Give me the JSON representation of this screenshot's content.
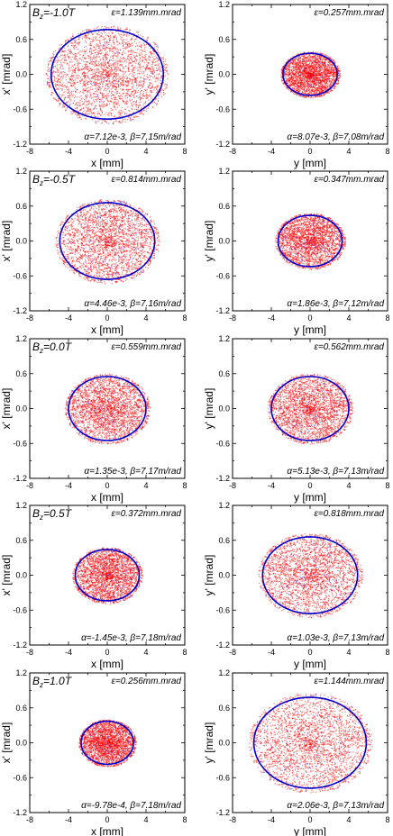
{
  "chart_data": [
    {
      "type": "scatter",
      "xlabel": "x [mm]",
      "ylabel": "x' [mrad]",
      "xlim": [
        -8,
        8
      ],
      "ylim": [
        -1.2,
        1.2
      ],
      "xticks": [
        "-8",
        "-4",
        "0",
        "4",
        "8"
      ],
      "yticks": [
        "-1.2",
        "-0.6",
        "0.0",
        "0.6",
        "1.2"
      ],
      "field_label": "B",
      "field_sub": "z",
      "field_value": "=-1.0T",
      "emittance": "ε=1.139mm.mrad",
      "twiss": "α=7.12e-3, β=7.15m/rad",
      "ellipse": {
        "semi_x": 5.8,
        "semi_y": 0.77
      },
      "series": [
        {
          "color": "#ff0000"
        }
      ],
      "fit_color": "#0000cc"
    },
    {
      "type": "scatter",
      "xlabel": "y [mm]",
      "ylabel": "y' [mrad]",
      "xlim": [
        -8,
        8
      ],
      "ylim": [
        -1.2,
        1.2
      ],
      "xticks": [
        "-8",
        "-4",
        "0",
        "4",
        "8"
      ],
      "yticks": [
        "-1.2",
        "-0.6",
        "0.0",
        "0.6",
        "1.2"
      ],
      "emittance": "ε=0.257mm.mrad",
      "twiss": "α=8.07e-3, β=7.08m/rad",
      "ellipse": {
        "semi_x": 2.8,
        "semi_y": 0.36
      },
      "series": [
        {
          "color": "#ff0000"
        }
      ],
      "fit_color": "#0000cc"
    },
    {
      "type": "scatter",
      "xlabel": "x [mm]",
      "ylabel": "x' [mrad]",
      "xlim": [
        -8,
        8
      ],
      "ylim": [
        -1.2,
        1.2
      ],
      "xticks": [
        "-8",
        "-4",
        "0",
        "4",
        "8"
      ],
      "yticks": [
        "-1.2",
        "-0.6",
        "0.0",
        "0.6",
        "1.2"
      ],
      "field_label": "B",
      "field_sub": "z",
      "field_value": "=-0.5T",
      "emittance": "ε=0.814mm.mrad",
      "twiss": "α=4.46e-3, β=7.16m/rad",
      "ellipse": {
        "semi_x": 4.9,
        "semi_y": 0.66
      },
      "series": [
        {
          "color": "#ff0000"
        }
      ],
      "fit_color": "#0000cc"
    },
    {
      "type": "scatter",
      "xlabel": "y [mm]",
      "ylabel": "y' [mrad]",
      "xlim": [
        -8,
        8
      ],
      "ylim": [
        -1.2,
        1.2
      ],
      "xticks": [
        "-8",
        "-4",
        "0",
        "4",
        "8"
      ],
      "yticks": [
        "-1.2",
        "-0.6",
        "0.0",
        "0.6",
        "1.2"
      ],
      "emittance": "ε=0.347mm.mrad",
      "twiss": "α=1.86e-3, β=7.12m/rad",
      "ellipse": {
        "semi_x": 3.3,
        "semi_y": 0.44
      },
      "series": [
        {
          "color": "#ff0000"
        }
      ],
      "fit_color": "#0000cc"
    },
    {
      "type": "scatter",
      "xlabel": "x [mm]",
      "ylabel": "x' [mrad]",
      "xlim": [
        -8,
        8
      ],
      "ylim": [
        -1.2,
        1.2
      ],
      "xticks": [
        "-8",
        "-4",
        "0",
        "4",
        "8"
      ],
      "yticks": [
        "-1.2",
        "-0.6",
        "0.0",
        "0.6",
        "1.2"
      ],
      "field_label": "B",
      "field_sub": "z",
      "field_value": "=0.0T",
      "emittance": "ε=0.559mm.mrad",
      "twiss": "α=1.35e-3, β=7.17m/rad",
      "ellipse": {
        "semi_x": 4.0,
        "semi_y": 0.55
      },
      "series": [
        {
          "color": "#ff0000"
        }
      ],
      "fit_color": "#0000cc"
    },
    {
      "type": "scatter",
      "xlabel": "y [mm]",
      "ylabel": "y' [mrad]",
      "xlim": [
        -8,
        8
      ],
      "ylim": [
        -1.2,
        1.2
      ],
      "xticks": [
        "-8",
        "-4",
        "0",
        "4",
        "8"
      ],
      "yticks": [
        "-1.2",
        "-0.6",
        "0.0",
        "0.6",
        "1.2"
      ],
      "emittance": "ε=0.562mm.mrad",
      "twiss": "α=5.13e-3, β=7.13m/rad",
      "ellipse": {
        "semi_x": 4.0,
        "semi_y": 0.55
      },
      "series": [
        {
          "color": "#ff0000"
        }
      ],
      "fit_color": "#0000cc"
    },
    {
      "type": "scatter",
      "xlabel": "x [mm]",
      "ylabel": "x' [mrad]",
      "xlim": [
        -8,
        8
      ],
      "ylim": [
        -1.2,
        1.2
      ],
      "xticks": [
        "-8",
        "-4",
        "0",
        "4",
        "8"
      ],
      "yticks": [
        "-1.2",
        "-0.6",
        "0.0",
        "0.6",
        "1.2"
      ],
      "field_label": "B",
      "field_sub": "z",
      "field_value": "=0.5T",
      "emittance": "ε=0.372mm.mrad",
      "twiss": "α=-1.45e-3, β=7.18m/rad",
      "ellipse": {
        "semi_x": 3.3,
        "semi_y": 0.44
      },
      "series": [
        {
          "color": "#ff0000"
        }
      ],
      "fit_color": "#0000cc"
    },
    {
      "type": "scatter",
      "xlabel": "y [mm]",
      "ylabel": "y' [mrad]",
      "xlim": [
        -8,
        8
      ],
      "ylim": [
        -1.2,
        1.2
      ],
      "xticks": [
        "-8",
        "-4",
        "0",
        "4",
        "8"
      ],
      "yticks": [
        "-1.2",
        "-0.6",
        "0.0",
        "0.6",
        "1.2"
      ],
      "emittance": "ε=0.818mm.mrad",
      "twiss": "α=1.03e-3, β=7.13m/rad",
      "ellipse": {
        "semi_x": 4.9,
        "semi_y": 0.66
      },
      "series": [
        {
          "color": "#ff0000"
        }
      ],
      "fit_color": "#0000cc"
    },
    {
      "type": "scatter",
      "xlabel": "x [mm]",
      "ylabel": "x' [mrad]",
      "xlim": [
        -8,
        8
      ],
      "ylim": [
        -1.2,
        1.2
      ],
      "xticks": [
        "-8",
        "-4",
        "0",
        "4",
        "8"
      ],
      "yticks": [
        "-1.2",
        "-0.6",
        "0.0",
        "0.6",
        "1.2"
      ],
      "field_label": "B",
      "field_sub": "z",
      "field_value": "=1.0T",
      "emittance": "ε=0.256mm.mrad",
      "twiss": "α=-9.78e-4, β=7.18m/rad",
      "ellipse": {
        "semi_x": 2.7,
        "semi_y": 0.37
      },
      "series": [
        {
          "color": "#ff0000"
        }
      ],
      "fit_color": "#0000cc"
    },
    {
      "type": "scatter",
      "xlabel": "y [mm]",
      "ylabel": "y' [mrad]",
      "xlim": [
        -8,
        8
      ],
      "ylim": [
        -1.2,
        1.2
      ],
      "xticks": [
        "-8",
        "-4",
        "0",
        "4",
        "8"
      ],
      "yticks": [
        "-1.2",
        "-0.6",
        "0.0",
        "0.6",
        "1.2"
      ],
      "emittance": "ε=1.144mm.mrad",
      "twiss": "α=2.06e-3, β=7.13m/rad",
      "ellipse": {
        "semi_x": 5.8,
        "semi_y": 0.78
      },
      "series": [
        {
          "color": "#ff0000"
        }
      ],
      "fit_color": "#0000cc"
    }
  ]
}
